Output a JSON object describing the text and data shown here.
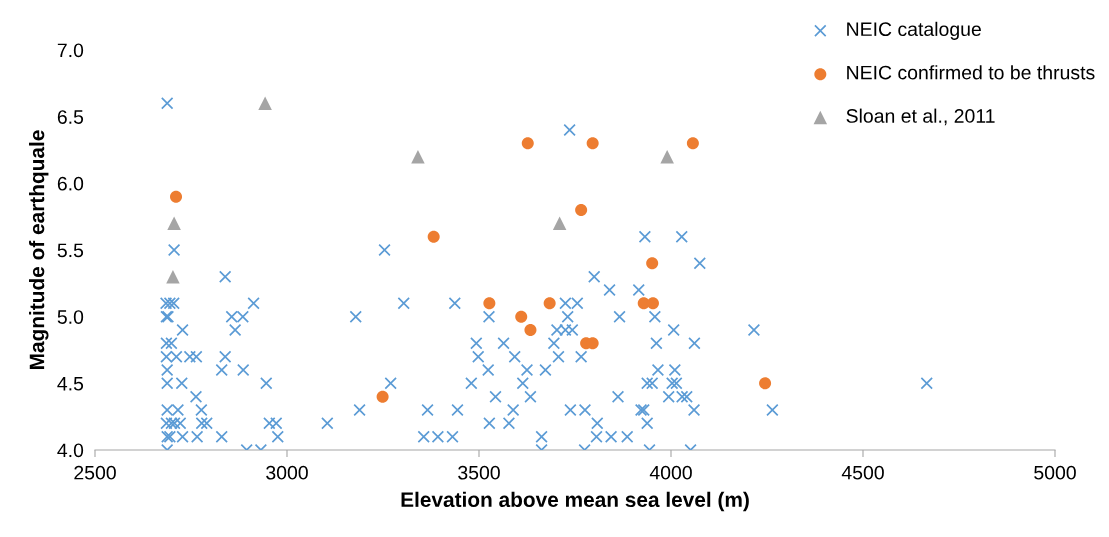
{
  "chart_data": {
    "type": "scatter",
    "xlabel": "Elevation above mean sea level (m)",
    "ylabel": "Magnitude of earthquale",
    "xlim": [
      2500,
      5000
    ],
    "xticks": [
      2500,
      3000,
      3500,
      4000,
      4500,
      5000
    ],
    "ylim": [
      4.0,
      7.0
    ],
    "yticks": [
      {
        "value": 4.0,
        "label": "4.0"
      },
      {
        "value": 4.5,
        "label": "4.5"
      },
      {
        "value": 5.0,
        "label": "5.0"
      },
      {
        "value": 5.5,
        "label": "5.5"
      },
      {
        "value": 6.0,
        "label": "6.0"
      },
      {
        "value": 6.5,
        "label": "6.5"
      },
      {
        "value": 7.0,
        "label": "7.0"
      }
    ],
    "grid": false,
    "legend": "top right",
    "series": [
      {
        "name": "NEIC catalogue",
        "color": "#5b9bd5",
        "marker": "cross",
        "x": [
          2688,
          2706,
          2839,
          2685,
          2695,
          2705,
          2913,
          2686,
          2690,
          2856,
          2885,
          2728,
          2865,
          2686,
          2699,
          2686,
          2712,
          2747,
          2764,
          2839,
          2688,
          2830,
          2886,
          2688,
          2726,
          2946,
          2763,
          2688,
          2716,
          2777,
          2686,
          2699,
          2707,
          2722,
          2778,
          2791,
          2954,
          2972,
          3105,
          2688,
          2695,
          2728,
          2766,
          2830,
          2976,
          2688,
          2895,
          2932,
          3254,
          3304,
          3437,
          3179,
          3526,
          3703,
          3493,
          3564,
          3695,
          3498,
          3593,
          3707,
          3524,
          3625,
          3673,
          3270,
          3480,
          3614,
          3543,
          3634,
          3189,
          3366,
          3444,
          3589,
          3527,
          3578,
          3356,
          3393,
          3431,
          3663,
          3663,
          3736,
          3932,
          4028,
          4075,
          3800,
          3840,
          3916,
          3725,
          3756,
          3731,
          3866,
          3958,
          3725,
          3743,
          4007,
          4216,
          3962,
          4061,
          3766,
          3966,
          4010,
          3938,
          3951,
          4003,
          4014,
          3862,
          3994,
          4029,
          4041,
          3738,
          3776,
          3922,
          3929,
          4060,
          4264,
          3808,
          3938,
          3806,
          3844,
          3886,
          3775,
          3944,
          4051,
          4666
        ],
        "values": [
          6.6,
          5.5,
          5.3,
          5.1,
          5.1,
          5.1,
          5.1,
          5.0,
          5.0,
          5.0,
          5.0,
          4.9,
          4.9,
          4.8,
          4.8,
          4.7,
          4.7,
          4.7,
          4.7,
          4.7,
          4.6,
          4.6,
          4.6,
          4.5,
          4.5,
          4.5,
          4.4,
          4.3,
          4.3,
          4.3,
          4.2,
          4.2,
          4.2,
          4.2,
          4.2,
          4.2,
          4.2,
          4.2,
          4.2,
          4.1,
          4.1,
          4.1,
          4.1,
          4.1,
          4.1,
          4.0,
          4.0,
          4.0,
          5.5,
          5.1,
          5.1,
          5.0,
          5.0,
          4.9,
          4.8,
          4.8,
          4.8,
          4.7,
          4.7,
          4.7,
          4.6,
          4.6,
          4.6,
          4.5,
          4.5,
          4.5,
          4.4,
          4.4,
          4.3,
          4.3,
          4.3,
          4.3,
          4.2,
          4.2,
          4.1,
          4.1,
          4.1,
          4.1,
          4.0,
          6.4,
          5.6,
          5.6,
          5.4,
          5.3,
          5.2,
          5.2,
          5.1,
          5.1,
          5.0,
          5.0,
          5.0,
          4.9,
          4.9,
          4.9,
          4.9,
          4.8,
          4.8,
          4.7,
          4.6,
          4.6,
          4.5,
          4.5,
          4.5,
          4.5,
          4.4,
          4.4,
          4.4,
          4.4,
          4.3,
          4.3,
          4.3,
          4.3,
          4.3,
          4.3,
          4.2,
          4.2,
          4.1,
          4.1,
          4.1,
          4.0,
          4.0,
          4.0,
          4.5
        ]
      },
      {
        "name": "NEIC confirmed to be thrusts",
        "color": "#ed7d31",
        "marker": "circle",
        "x": [
          2711,
          3627,
          3382,
          3527,
          3684,
          3610,
          3634,
          3249,
          3796,
          4057,
          3766,
          3951,
          3929,
          3953,
          3779,
          3796,
          4245
        ],
        "values": [
          5.9,
          6.3,
          5.6,
          5.1,
          5.1,
          5.0,
          4.9,
          4.4,
          6.3,
          6.3,
          5.8,
          5.4,
          5.1,
          5.1,
          4.8,
          4.8,
          4.5
        ]
      },
      {
        "name": "Sloan et al., 2011",
        "color": "#a5a5a5",
        "marker": "triangle",
        "x": [
          2943,
          2706,
          2703,
          3341,
          3710,
          3990
        ],
        "values": [
          6.6,
          5.7,
          5.3,
          6.2,
          5.7,
          6.2
        ]
      }
    ]
  }
}
